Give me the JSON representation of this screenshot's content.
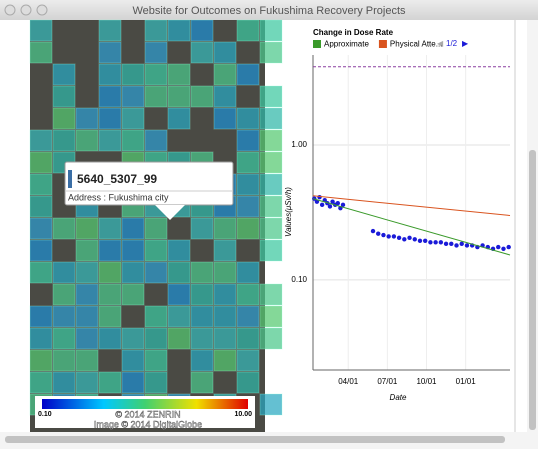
{
  "window": {
    "title": "Website for Outcomes on Fukushima Recovery Projects"
  },
  "map": {
    "popup": {
      "title": "5640_5307_99",
      "address": "Address : Fukushima city"
    },
    "scale": {
      "min_label": "0.10",
      "max_label": "10.00"
    },
    "attribution": [
      "© 2014 ZENRIN",
      "Image © 2014 DigitalGlobe"
    ]
  },
  "chart": {
    "type": "scatter",
    "title": "Change in Dose Rate",
    "legend_page": "1/2",
    "xlabel": "Date",
    "ylabel": "Values(μSv/h)",
    "log_y": true,
    "grid": true,
    "xlim": [
      0.3,
      15.4
    ],
    "ylim": [
      0.0215,
      4.64
    ],
    "xticks": [
      {
        "value": 3,
        "label": "04/01"
      },
      {
        "value": 6,
        "label": "07/01"
      },
      {
        "value": 9,
        "label": "10/01"
      },
      {
        "value": 12,
        "label": "01/01"
      }
    ],
    "yticks": [
      {
        "value": 1,
        "label": "1.00"
      },
      {
        "value": 0.1,
        "label": "0.10"
      }
    ],
    "reference_line": {
      "value": 3.8,
      "color": "#8a3fa0"
    },
    "series": [
      {
        "type": "scatter",
        "color": "#1a1ad8",
        "x": [
          0.4,
          0.6,
          0.8,
          1.0,
          1.2,
          1.4,
          1.6,
          1.8,
          2.0,
          2.2,
          2.4,
          2.6,
          4.9,
          5.3,
          5.7,
          6.1,
          6.5,
          6.9,
          7.3,
          7.7,
          8.1,
          8.5,
          8.9,
          9.3,
          9.7,
          10.1,
          10.5,
          10.9,
          11.3,
          11.7,
          12.1,
          12.5,
          12.9,
          13.3,
          13.7,
          14.1,
          14.5,
          14.9,
          15.3
        ],
        "values": [
          0.4,
          0.38,
          0.41,
          0.36,
          0.39,
          0.37,
          0.35,
          0.38,
          0.36,
          0.37,
          0.34,
          0.36,
          0.23,
          0.22,
          0.215,
          0.21,
          0.21,
          0.205,
          0.2,
          0.205,
          0.2,
          0.195,
          0.195,
          0.19,
          0.19,
          0.19,
          0.185,
          0.185,
          0.18,
          0.185,
          0.18,
          0.18,
          0.175,
          0.18,
          0.175,
          0.17,
          0.175,
          0.17,
          0.175
        ]
      },
      {
        "type": "line",
        "name": "Approximate",
        "color": "#3a9a2a",
        "x": [
          0.3,
          15.4
        ],
        "values": [
          0.4,
          0.153
        ]
      },
      {
        "type": "line",
        "name": "Physical Atte...",
        "color": "#d9531e",
        "x": [
          0.3,
          15.4
        ],
        "values": [
          0.42,
          0.3
        ]
      }
    ]
  }
}
